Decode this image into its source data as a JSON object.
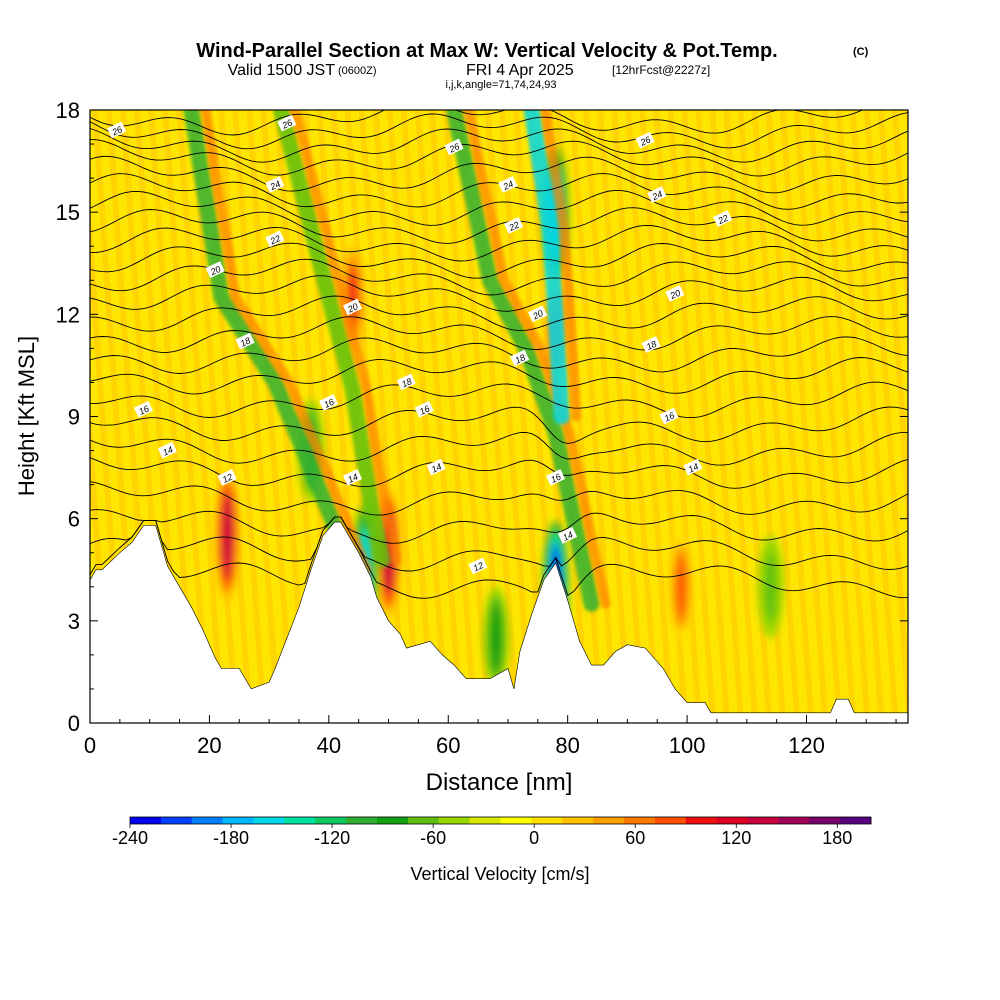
{
  "header": {
    "title": "Wind-Parallel Section at Max W: Vertical Velocity & Pot.Temp.",
    "title_mark": "(C)",
    "valid_prefix": "Valid 1500 JST",
    "valid_zulu": "(0600Z)",
    "valid_date": "FRI 4 Apr 2025",
    "forecast": "[12hrFcst@2227z]",
    "grid_info": "i,j,k,angle=71,74,24,93"
  },
  "chart_data": {
    "type": "heatmap",
    "xlabel": "Distance [nm]",
    "ylabel": "Height [Kft MSL]",
    "xlim": [
      0,
      137
    ],
    "ylim": [
      0,
      18
    ],
    "xticks": [
      0,
      20,
      40,
      60,
      80,
      100,
      120
    ],
    "yticks": [
      0,
      3,
      6,
      9,
      12,
      15,
      18
    ],
    "grid": false,
    "terrain_profile": [
      [
        0,
        4.2
      ],
      [
        1,
        4.5
      ],
      [
        2,
        4.5
      ],
      [
        5,
        5.0
      ],
      [
        7,
        5.3
      ],
      [
        9,
        5.8
      ],
      [
        11,
        5.8
      ],
      [
        13,
        4.6
      ],
      [
        15,
        4.0
      ],
      [
        17,
        3.4
      ],
      [
        19,
        2.7
      ],
      [
        20,
        2.3
      ],
      [
        21,
        1.9
      ],
      [
        22,
        1.6
      ],
      [
        25,
        1.6
      ],
      [
        27,
        1.0
      ],
      [
        30,
        1.2
      ],
      [
        31,
        1.6
      ],
      [
        33,
        2.5
      ],
      [
        35,
        3.4
      ],
      [
        37,
        4.5
      ],
      [
        39,
        5.5
      ],
      [
        41,
        5.9
      ],
      [
        42,
        5.9
      ],
      [
        43,
        5.6
      ],
      [
        45,
        5.0
      ],
      [
        47,
        4.3
      ],
      [
        48,
        3.7
      ],
      [
        50,
        3.0
      ],
      [
        52,
        2.6
      ],
      [
        53,
        2.2
      ],
      [
        55,
        2.3
      ],
      [
        57,
        2.4
      ],
      [
        59,
        2.0
      ],
      [
        61,
        1.7
      ],
      [
        63,
        1.3
      ],
      [
        67,
        1.3
      ],
      [
        70,
        1.6
      ],
      [
        71,
        1.0
      ],
      [
        72,
        2.1
      ],
      [
        74,
        3.2
      ],
      [
        76,
        4.2
      ],
      [
        78,
        4.7
      ],
      [
        80,
        3.6
      ],
      [
        82,
        2.4
      ],
      [
        84,
        1.7
      ],
      [
        86,
        1.7
      ],
      [
        88,
        2.1
      ],
      [
        90,
        2.3
      ],
      [
        93,
        2.2
      ],
      [
        96,
        1.6
      ],
      [
        98,
        1.0
      ],
      [
        100,
        0.6
      ],
      [
        103,
        0.6
      ],
      [
        104,
        0.3
      ],
      [
        124,
        0.3
      ],
      [
        125,
        0.7
      ],
      [
        127,
        0.7
      ],
      [
        128,
        0.3
      ],
      [
        137,
        0.3
      ]
    ],
    "velocity_features": [
      {
        "kind": "updraft",
        "x": 23,
        "z": 5.5,
        "peak": 170
      },
      {
        "kind": "updraft",
        "x": 44,
        "z": 12.5,
        "peak": 120
      },
      {
        "kind": "updraft",
        "x": 50,
        "z": 5.0,
        "peak": 170
      },
      {
        "kind": "updraft",
        "x": 78,
        "z": 11.5,
        "peak": 110
      },
      {
        "kind": "updraft",
        "x": 99,
        "z": 4.0,
        "peak": 100
      },
      {
        "kind": "downdraft",
        "x": 37,
        "z": 8.0,
        "peak": -100
      },
      {
        "kind": "downdraft",
        "x": 46,
        "z": 4.5,
        "peak": -160
      },
      {
        "kind": "downdraft",
        "x": 78,
        "z": 15.0,
        "peak": -150
      },
      {
        "kind": "downdraft",
        "x": 78,
        "z": 4.0,
        "peak": -230
      },
      {
        "kind": "downdraft",
        "x": 68,
        "z": 2.5,
        "peak": -80
      },
      {
        "kind": "downdraft",
        "x": 114,
        "z": 4.0,
        "peak": -60
      }
    ],
    "contour_labels": [
      {
        "text": "26",
        "x": 4.5,
        "z": 17.4
      },
      {
        "text": "26",
        "x": 33,
        "z": 17.6
      },
      {
        "text": "26",
        "x": 61,
        "z": 16.9
      },
      {
        "text": "26",
        "x": 93,
        "z": 17.1
      },
      {
        "text": "24",
        "x": 31,
        "z": 15.8
      },
      {
        "text": "24",
        "x": 70,
        "z": 15.8
      },
      {
        "text": "24",
        "x": 95,
        "z": 15.5
      },
      {
        "text": "22",
        "x": 31,
        "z": 14.2
      },
      {
        "text": "22",
        "x": 71,
        "z": 14.6
      },
      {
        "text": "22",
        "x": 106,
        "z": 14.8
      },
      {
        "text": "20",
        "x": 21,
        "z": 13.3
      },
      {
        "text": "20",
        "x": 44,
        "z": 12.2
      },
      {
        "text": "20",
        "x": 75,
        "z": 12.0
      },
      {
        "text": "20",
        "x": 98,
        "z": 12.6
      },
      {
        "text": "18",
        "x": 26,
        "z": 11.2
      },
      {
        "text": "18",
        "x": 53,
        "z": 10.0
      },
      {
        "text": "18",
        "x": 72,
        "z": 10.7
      },
      {
        "text": "18",
        "x": 94,
        "z": 11.1
      },
      {
        "text": "16",
        "x": 9,
        "z": 9.2
      },
      {
        "text": "16",
        "x": 40,
        "z": 9.4
      },
      {
        "text": "16",
        "x": 56,
        "z": 9.2
      },
      {
        "text": "16",
        "x": 97,
        "z": 9.0
      },
      {
        "text": "14",
        "x": 13,
        "z": 8.0
      },
      {
        "text": "14",
        "x": 44,
        "z": 7.2
      },
      {
        "text": "14",
        "x": 58,
        "z": 7.5
      },
      {
        "text": "14",
        "x": 101,
        "z": 7.5
      },
      {
        "text": "14",
        "x": 80,
        "z": 5.5
      },
      {
        "text": "16",
        "x": 78,
        "z": 7.2
      },
      {
        "text": "12",
        "x": 23,
        "z": 7.2
      },
      {
        "text": "12",
        "x": 65,
        "z": 4.6
      }
    ],
    "colorbar": {
      "label": "Vertical Velocity [cm/s]",
      "min": -240,
      "max": 200,
      "step": 20,
      "tick_labels": [
        "-240",
        "-180",
        "-120",
        "-60",
        "0",
        "60",
        "120",
        "180"
      ],
      "colors": [
        "#0000ee",
        "#0040ff",
        "#0080ff",
        "#00b8ff",
        "#00d8e8",
        "#00e0a0",
        "#10c860",
        "#30b030",
        "#10a010",
        "#60c010",
        "#98d800",
        "#d8e800",
        "#ffff00",
        "#ffe000",
        "#ffc000",
        "#ffa000",
        "#ff7800",
        "#ff5000",
        "#ee1010",
        "#dd0020",
        "#c80040",
        "#a00058",
        "#7a006e",
        "#580080"
      ]
    }
  }
}
